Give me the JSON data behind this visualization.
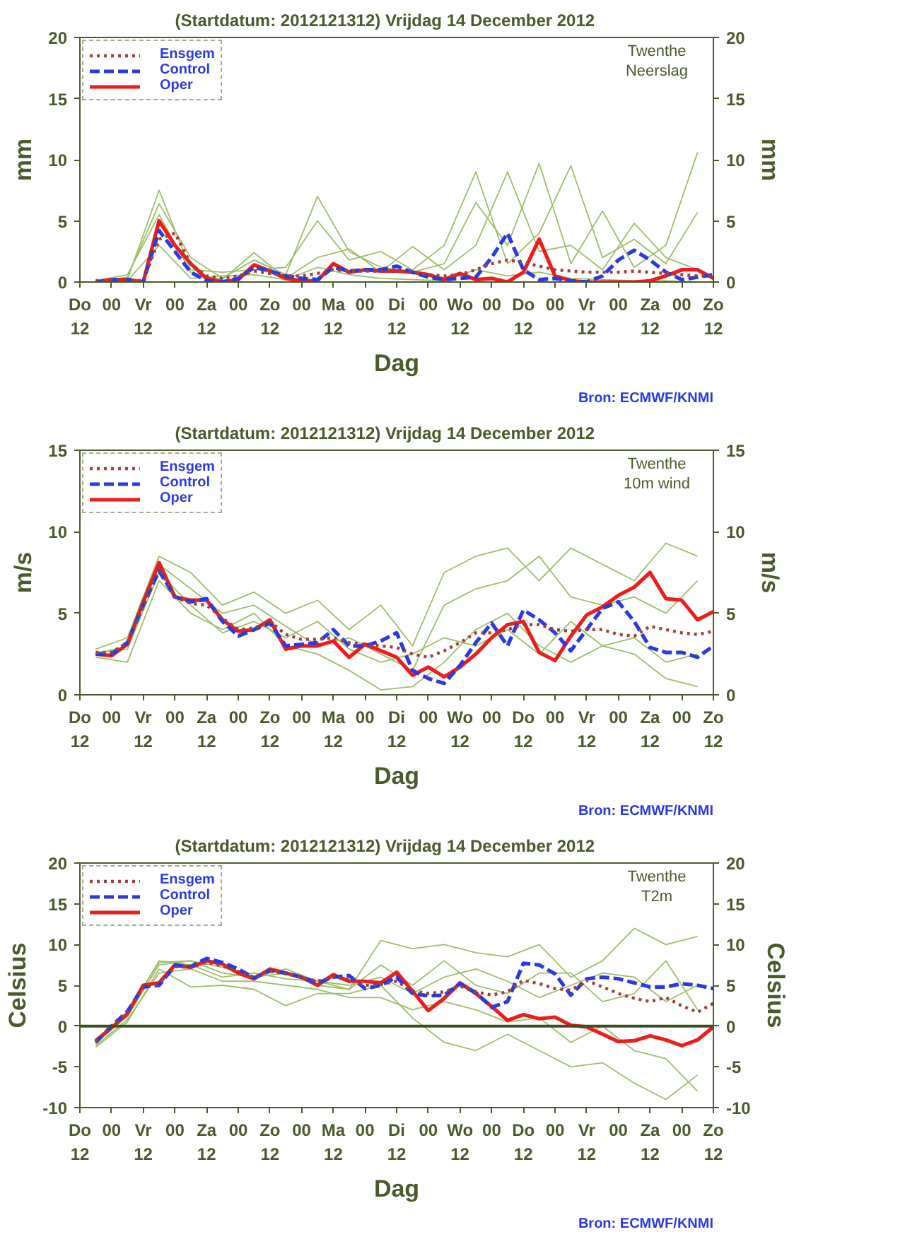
{
  "chart_data": [
    {
      "type": "line",
      "title": "(Startdatum: 2012121312)   Vrijdag   14 December  2012",
      "xlabel": "Dag",
      "ylabel": "mm",
      "y2label": "mm",
      "annotations": [
        "Twenthe",
        "Neerslag",
        "Bron: ECMWF/KNMI"
      ],
      "legend": "top left",
      "xlim": [
        "2012-12-13T12:00",
        "2012-12-23T12:00"
      ],
      "ylim": [
        0,
        20
      ],
      "y2lim": [
        0,
        20
      ],
      "yticks": [
        0,
        5,
        10,
        15,
        20
      ],
      "y2ticks": [
        0,
        5,
        10,
        15,
        20
      ],
      "xticks": [
        {
          "value": "2012-12-13T12:00",
          "label": "Do\n12"
        },
        {
          "value": "2012-12-14T00:00",
          "label": "00"
        },
        {
          "value": "2012-12-14T12:00",
          "label": "Vr\n12"
        },
        {
          "value": "2012-12-15T00:00",
          "label": "00"
        },
        {
          "value": "2012-12-15T12:00",
          "label": "Za\n12"
        },
        {
          "value": "2012-12-16T00:00",
          "label": "00"
        },
        {
          "value": "2012-12-16T12:00",
          "label": "Zo\n12"
        },
        {
          "value": "2012-12-17T00:00",
          "label": "00"
        },
        {
          "value": "2012-12-17T12:00",
          "label": "Ma\n12"
        },
        {
          "value": "2012-12-18T00:00",
          "label": "00"
        },
        {
          "value": "2012-12-18T12:00",
          "label": "Di\n12"
        },
        {
          "value": "2012-12-19T00:00",
          "label": "00"
        },
        {
          "value": "2012-12-19T12:00",
          "label": "Wo\n12"
        },
        {
          "value": "2012-12-20T00:00",
          "label": "00"
        },
        {
          "value": "2012-12-20T12:00",
          "label": "Do\n12"
        },
        {
          "value": "2012-12-21T00:00",
          "label": "00"
        },
        {
          "value": "2012-12-21T12:00",
          "label": "Vr\n12"
        },
        {
          "value": "2012-12-22T00:00",
          "label": "00"
        },
        {
          "value": "2012-12-22T12:00",
          "label": "Za\n12"
        },
        {
          "value": "2012-12-23T00:00",
          "label": "00"
        },
        {
          "value": "2012-12-23T12:00",
          "label": "Zo\n12"
        }
      ],
      "x": [
        "2012-12-13T18:00",
        "2012-12-14T00:00",
        "2012-12-14T06:00",
        "2012-12-14T12:00",
        "2012-12-14T18:00",
        "2012-12-15T00:00",
        "2012-12-15T06:00",
        "2012-12-15T12:00",
        "2012-12-15T18:00",
        "2012-12-16T00:00",
        "2012-12-16T06:00",
        "2012-12-16T12:00",
        "2012-12-16T18:00",
        "2012-12-17T00:00",
        "2012-12-17T06:00",
        "2012-12-17T12:00",
        "2012-12-17T18:00",
        "2012-12-18T00:00",
        "2012-12-18T06:00",
        "2012-12-18T12:00",
        "2012-12-18T18:00",
        "2012-12-19T00:00",
        "2012-12-19T06:00",
        "2012-12-19T12:00",
        "2012-12-19T18:00",
        "2012-12-20T00:00",
        "2012-12-20T06:00",
        "2012-12-20T12:00",
        "2012-12-20T18:00",
        "2012-12-21T00:00",
        "2012-12-21T06:00",
        "2012-12-21T12:00",
        "2012-12-21T18:00",
        "2012-12-22T00:00",
        "2012-12-22T06:00",
        "2012-12-22T12:00",
        "2012-12-22T18:00",
        "2012-12-23T00:00",
        "2012-12-23T06:00",
        "2012-12-23T12:00"
      ],
      "series": [
        {
          "color": "#9cbf6a",
          "x": [
            "2012-12-13T18:00",
            "2012-12-14T06:00",
            "2012-12-14T18:00",
            "2012-12-15T06:00",
            "2012-12-15T18:00",
            "2012-12-16T06:00",
            "2012-12-16T18:00",
            "2012-12-17T06:00",
            "2012-12-17T18:00",
            "2012-12-18T06:00",
            "2012-12-18T18:00",
            "2012-12-19T06:00",
            "2012-12-19T18:00",
            "2012-12-20T06:00",
            "2012-12-20T18:00",
            "2012-12-21T06:00",
            "2012-12-21T18:00",
            "2012-12-22T06:00",
            "2012-12-22T18:00",
            "2012-12-23T06:00"
          ],
          "values": [
            0,
            0.4,
            6.4,
            2.0,
            0.3,
            1.8,
            0.6,
            7.0,
            2.5,
            1.2,
            0.8,
            1.5,
            6.5,
            3.0,
            9.7,
            1.5,
            5.8,
            1.2,
            3.0,
            10.6
          ]
        },
        {
          "color": "#9cbf6a",
          "x": [
            "2012-12-13T18:00",
            "2012-12-14T06:00",
            "2012-12-14T18:00",
            "2012-12-15T06:00",
            "2012-12-15T18:00",
            "2012-12-16T06:00",
            "2012-12-16T18:00",
            "2012-12-17T06:00",
            "2012-12-17T18:00",
            "2012-12-18T06:00",
            "2012-12-18T18:00",
            "2012-12-19T06:00",
            "2012-12-19T18:00",
            "2012-12-20T06:00",
            "2012-12-20T18:00",
            "2012-12-21T06:00",
            "2012-12-21T18:00",
            "2012-12-22T06:00",
            "2012-12-22T18:00",
            "2012-12-23T06:00"
          ],
          "values": [
            0,
            0.2,
            7.5,
            1.0,
            0.8,
            1.0,
            1.2,
            5.0,
            1.8,
            2.5,
            1.0,
            3.0,
            9.0,
            1.5,
            4.0,
            9.5,
            2.0,
            3.5,
            1.5,
            5.7
          ]
        },
        {
          "color": "#9cbf6a",
          "x": [
            "2012-12-13T18:00",
            "2012-12-14T06:00",
            "2012-12-14T18:00",
            "2012-12-15T06:00",
            "2012-12-15T18:00",
            "2012-12-16T06:00",
            "2012-12-16T18:00",
            "2012-12-17T06:00",
            "2012-12-17T18:00",
            "2012-12-18T06:00",
            "2012-12-18T18:00",
            "2012-12-19T06:00",
            "2012-12-19T18:00",
            "2012-12-20T06:00",
            "2012-12-20T18:00",
            "2012-12-21T06:00",
            "2012-12-21T18:00",
            "2012-12-22T06:00",
            "2012-12-22T18:00",
            "2012-12-23T06:00"
          ],
          "values": [
            0.1,
            0.6,
            5.5,
            0.8,
            0.2,
            2.4,
            0.3,
            2.0,
            2.7,
            0.8,
            2.9,
            1.0,
            3.0,
            9.0,
            2.5,
            3.0,
            1.0,
            4.8,
            2.0,
            1.0
          ]
        },
        {
          "color": "#9cbf6a",
          "x": [
            "2012-12-13T18:00",
            "2012-12-14T06:00",
            "2012-12-14T18:00",
            "2012-12-15T06:00",
            "2012-12-15T18:00",
            "2012-12-16T06:00",
            "2012-12-16T18:00",
            "2012-12-17T06:00",
            "2012-12-17T18:00",
            "2012-12-18T06:00",
            "2012-12-18T18:00",
            "2012-12-19T06:00",
            "2012-12-19T18:00",
            "2012-12-20T06:00",
            "2012-12-20T18:00",
            "2012-12-21T06:00",
            "2012-12-21T18:00",
            "2012-12-22T06:00",
            "2012-12-22T18:00",
            "2012-12-23T06:00"
          ],
          "values": [
            0,
            0.1,
            3.0,
            0.3,
            0.5,
            0.6,
            0.2,
            1.2,
            0.6,
            0.3,
            0.2,
            0.1,
            1.0,
            0.5,
            0.8,
            0.3,
            0.2,
            0.1,
            0.1,
            0
          ]
        },
        {
          "name": "Ensgem",
          "color": "#a0403a",
          "line_style": "dotted",
          "values": [
            0.1,
            0.2,
            0.2,
            0.1,
            3.5,
            4.0,
            1.5,
            0.5,
            0.3,
            0.5,
            0.9,
            0.7,
            0.5,
            0.5,
            0.7,
            1.0,
            0.9,
            0.9,
            0.9,
            0.9,
            0.8,
            0.6,
            0.5,
            0.6,
            1.0,
            1.5,
            1.8,
            1.6,
            1.3,
            1.0,
            0.9,
            0.8,
            0.8,
            0.8,
            0.9,
            0.8,
            0.7,
            0.6,
            0.5,
            0.5
          ]
        },
        {
          "name": "Control",
          "color": "#2a3ae0",
          "line_style": "dashed",
          "values": [
            0,
            0.2,
            0.2,
            0,
            4.2,
            2.5,
            0.8,
            0.1,
            0,
            0.3,
            1.2,
            0.9,
            0.5,
            0.3,
            0.2,
            1.2,
            0.9,
            1.0,
            1.0,
            1.3,
            0.8,
            0.4,
            0.2,
            0.3,
            0.4,
            2.0,
            4.0,
            1.0,
            0.2,
            0.3,
            0.1,
            0,
            0.5,
            1.8,
            2.6,
            1.8,
            0.8,
            0.2,
            0.4,
            0.6
          ]
        },
        {
          "name": "Oper",
          "color": "#ee1c1c",
          "line_style": "solid",
          "values": [
            0,
            0.2,
            0.2,
            0,
            5.0,
            3.0,
            1.5,
            0.3,
            0,
            0.2,
            1.4,
            0.9,
            0.3,
            0.1,
            0.1,
            1.5,
            0.8,
            1.0,
            0.9,
            0.9,
            0.8,
            0.6,
            0.2,
            0.7,
            0.2,
            0.3,
            0,
            0.8,
            3.5,
            0.5,
            0.1,
            0,
            0,
            0,
            0,
            0.1,
            0.5,
            1.0,
            1.0,
            0.3
          ]
        }
      ]
    },
    {
      "type": "line",
      "title": "(Startdatum: 2012121312)   Vrijdag   14 December  2012",
      "xlabel": "Dag",
      "ylabel": "m/s",
      "y2label": "m/s",
      "annotations": [
        "Twenthe",
        "10m wind",
        "Bron: ECMWF/KNMI"
      ],
      "legend": "top left",
      "xlim": [
        "2012-12-13T12:00",
        "2012-12-23T12:00"
      ],
      "ylim": [
        0,
        15
      ],
      "y2lim": [
        0,
        15
      ],
      "yticks": [
        0,
        5,
        10,
        15
      ],
      "y2ticks": [
        0,
        5,
        10,
        15
      ],
      "xticks": [
        {
          "value": "2012-12-13T12:00",
          "label": "Do\n12"
        },
        {
          "value": "2012-12-14T00:00",
          "label": "00"
        },
        {
          "value": "2012-12-14T12:00",
          "label": "Vr\n12"
        },
        {
          "value": "2012-12-15T00:00",
          "label": "00"
        },
        {
          "value": "2012-12-15T12:00",
          "label": "Za\n12"
        },
        {
          "value": "2012-12-16T00:00",
          "label": "00"
        },
        {
          "value": "2012-12-16T12:00",
          "label": "Zo\n12"
        },
        {
          "value": "2012-12-17T00:00",
          "label": "00"
        },
        {
          "value": "2012-12-17T12:00",
          "label": "Ma\n12"
        },
        {
          "value": "2012-12-18T00:00",
          "label": "00"
        },
        {
          "value": "2012-12-18T12:00",
          "label": "Di\n12"
        },
        {
          "value": "2012-12-19T00:00",
          "label": "00"
        },
        {
          "value": "2012-12-19T12:00",
          "label": "Wo\n12"
        },
        {
          "value": "2012-12-20T00:00",
          "label": "00"
        },
        {
          "value": "2012-12-20T12:00",
          "label": "Do\n12"
        },
        {
          "value": "2012-12-21T00:00",
          "label": "00"
        },
        {
          "value": "2012-12-21T12:00",
          "label": "Vr\n12"
        },
        {
          "value": "2012-12-22T00:00",
          "label": "00"
        },
        {
          "value": "2012-12-22T12:00",
          "label": "Za\n12"
        },
        {
          "value": "2012-12-23T00:00",
          "label": "00"
        },
        {
          "value": "2012-12-23T12:00",
          "label": "Zo\n12"
        }
      ],
      "x": [
        "2012-12-13T18:00",
        "2012-12-14T00:00",
        "2012-12-14T06:00",
        "2012-12-14T12:00",
        "2012-12-14T18:00",
        "2012-12-15T00:00",
        "2012-12-15T06:00",
        "2012-12-15T12:00",
        "2012-12-15T18:00",
        "2012-12-16T00:00",
        "2012-12-16T06:00",
        "2012-12-16T12:00",
        "2012-12-16T18:00",
        "2012-12-17T00:00",
        "2012-12-17T06:00",
        "2012-12-17T12:00",
        "2012-12-17T18:00",
        "2012-12-18T00:00",
        "2012-12-18T06:00",
        "2012-12-18T12:00",
        "2012-12-18T18:00",
        "2012-12-19T00:00",
        "2012-12-19T06:00",
        "2012-12-19T12:00",
        "2012-12-19T18:00",
        "2012-12-20T00:00",
        "2012-12-20T06:00",
        "2012-12-20T12:00",
        "2012-12-20T18:00",
        "2012-12-21T00:00",
        "2012-12-21T06:00",
        "2012-12-21T12:00",
        "2012-12-21T18:00",
        "2012-12-22T00:00",
        "2012-12-22T06:00",
        "2012-12-22T12:00",
        "2012-12-22T18:00",
        "2012-12-23T00:00",
        "2012-12-23T06:00",
        "2012-12-23T12:00"
      ],
      "series": [
        {
          "color": "#9cbf6a",
          "x": [
            "2012-12-13T18:00",
            "2012-12-14T06:00",
            "2012-12-14T18:00",
            "2012-12-15T06:00",
            "2012-12-15T18:00",
            "2012-12-16T06:00",
            "2012-12-16T18:00",
            "2012-12-17T06:00",
            "2012-12-17T18:00",
            "2012-12-18T06:00",
            "2012-12-18T18:00",
            "2012-12-19T06:00",
            "2012-12-19T18:00",
            "2012-12-20T06:00",
            "2012-12-20T18:00",
            "2012-12-21T06:00",
            "2012-12-21T18:00",
            "2012-12-22T06:00",
            "2012-12-22T18:00",
            "2012-12-23T06:00"
          ],
          "values": [
            2.8,
            3.5,
            8.5,
            7.5,
            5.5,
            6.3,
            5.0,
            5.8,
            4.0,
            5.5,
            3.0,
            7.5,
            8.5,
            9.0,
            7.0,
            9.0,
            8.0,
            7.0,
            9.3,
            8.5
          ]
        },
        {
          "color": "#9cbf6a",
          "x": [
            "2012-12-13T18:00",
            "2012-12-14T06:00",
            "2012-12-14T18:00",
            "2012-12-15T06:00",
            "2012-12-15T18:00",
            "2012-12-16T06:00",
            "2012-12-16T18:00",
            "2012-12-17T06:00",
            "2012-12-17T18:00",
            "2012-12-18T06:00",
            "2012-12-18T18:00",
            "2012-12-19T06:00",
            "2012-12-19T18:00",
            "2012-12-20T06:00",
            "2012-12-20T18:00",
            "2012-12-21T06:00",
            "2012-12-21T18:00",
            "2012-12-22T06:00",
            "2012-12-22T18:00",
            "2012-12-23T06:00"
          ],
          "values": [
            2.3,
            2.0,
            7.0,
            5.0,
            4.0,
            5.0,
            3.0,
            2.5,
            1.5,
            0.3,
            0.5,
            2.0,
            4.0,
            5.0,
            3.0,
            2.0,
            3.0,
            2.5,
            1.0,
            0.5
          ]
        },
        {
          "color": "#9cbf6a",
          "x": [
            "2012-12-13T18:00",
            "2012-12-14T06:00",
            "2012-12-14T18:00",
            "2012-12-15T06:00",
            "2012-12-15T18:00",
            "2012-12-16T06:00",
            "2012-12-16T18:00",
            "2012-12-17T06:00",
            "2012-12-17T18:00",
            "2012-12-18T06:00",
            "2012-12-18T18:00",
            "2012-12-19T06:00",
            "2012-12-19T18:00",
            "2012-12-20T06:00",
            "2012-12-20T18:00",
            "2012-12-21T06:00",
            "2012-12-21T18:00",
            "2012-12-22T06:00",
            "2012-12-22T18:00",
            "2012-12-23T06:00"
          ],
          "values": [
            2.5,
            3.0,
            8.0,
            6.5,
            5.0,
            5.5,
            4.2,
            3.0,
            3.5,
            2.5,
            1.5,
            5.5,
            6.5,
            7.0,
            8.5,
            6.0,
            5.5,
            6.0,
            5.0,
            7.0
          ]
        },
        {
          "color": "#9cbf6a",
          "x": [
            "2012-12-13T18:00",
            "2012-12-14T06:00",
            "2012-12-14T18:00",
            "2012-12-15T06:00",
            "2012-12-15T18:00",
            "2012-12-16T06:00",
            "2012-12-16T18:00",
            "2012-12-17T06:00",
            "2012-12-17T18:00",
            "2012-12-18T06:00",
            "2012-12-18T18:00",
            "2012-12-19T06:00",
            "2012-12-19T18:00",
            "2012-12-20T06:00",
            "2012-12-20T18:00",
            "2012-12-21T06:00",
            "2012-12-21T18:00",
            "2012-12-22T06:00",
            "2012-12-22T18:00",
            "2012-12-23T06:00"
          ],
          "values": [
            2.6,
            2.8,
            7.5,
            5.5,
            3.8,
            4.5,
            3.5,
            4.5,
            2.8,
            2.0,
            2.5,
            3.5,
            3.0,
            4.0,
            2.5,
            4.5,
            3.0,
            3.5,
            2.0,
            2.5
          ]
        },
        {
          "name": "Ensgem",
          "color": "#a0403a",
          "line_style": "dotted",
          "values": [
            2.6,
            2.6,
            3.2,
            5.5,
            7.8,
            6.0,
            5.6,
            5.5,
            4.7,
            4.0,
            4.1,
            4.5,
            3.7,
            3.4,
            3.4,
            3.5,
            3.2,
            3.1,
            3.0,
            2.9,
            2.5,
            2.3,
            2.7,
            3.2,
            3.8,
            3.8,
            4.0,
            4.3,
            4.3,
            4.0,
            3.9,
            4.0,
            4.0,
            3.7,
            3.6,
            4.2,
            4.0,
            3.8,
            3.7,
            3.9
          ]
        },
        {
          "name": "Control",
          "color": "#2a3ae0",
          "line_style": "dashed",
          "values": [
            2.5,
            2.5,
            3.2,
            5.5,
            7.6,
            6.0,
            5.7,
            5.9,
            4.5,
            3.6,
            4.0,
            4.4,
            3.0,
            3.1,
            3.2,
            4.0,
            3.0,
            3.0,
            3.3,
            3.8,
            1.5,
            1.0,
            0.7,
            1.8,
            3.2,
            4.4,
            3.0,
            5.2,
            4.6,
            3.8,
            2.7,
            4.0,
            5.3,
            5.7,
            4.5,
            2.9,
            2.6,
            2.6,
            2.3,
            3.0
          ]
        },
        {
          "name": "Oper",
          "color": "#ee1c1c",
          "line_style": "solid",
          "values": [
            2.5,
            2.4,
            3.1,
            5.7,
            8.1,
            6.0,
            5.8,
            5.8,
            4.6,
            3.9,
            4.0,
            4.6,
            2.8,
            3.0,
            3.0,
            3.3,
            2.3,
            3.1,
            2.7,
            2.3,
            1.2,
            1.7,
            1.1,
            1.7,
            2.5,
            3.5,
            4.3,
            4.5,
            2.6,
            2.1,
            3.6,
            4.9,
            5.4,
            6.1,
            6.6,
            7.5,
            5.9,
            5.8,
            4.6,
            5.1
          ]
        }
      ]
    },
    {
      "type": "line",
      "title": "(Startdatum: 2012121312)   Vrijdag   14 December  2012",
      "xlabel": "Dag",
      "ylabel": "Celsius",
      "y2label": "Celsius",
      "annotations": [
        "Twenthe",
        "T2m",
        "Bron: ECMWF/KNMI"
      ],
      "legend": "top left",
      "xlim": [
        "2012-12-13T12:00",
        "2012-12-23T12:00"
      ],
      "ylim": [
        -10,
        20
      ],
      "y2lim": [
        -10,
        20
      ],
      "yticks": [
        -10,
        -5,
        0,
        5,
        10,
        15,
        20
      ],
      "y2ticks": [
        -10,
        -5,
        0,
        5,
        10,
        15,
        20
      ],
      "ref_lines": [
        {
          "axis": "y",
          "value": 0,
          "color": "#3d4f1f"
        }
      ],
      "xticks": [
        {
          "value": "2012-12-13T12:00",
          "label": "Do\n12"
        },
        {
          "value": "2012-12-14T00:00",
          "label": "00"
        },
        {
          "value": "2012-12-14T12:00",
          "label": "Vr\n12"
        },
        {
          "value": "2012-12-15T00:00",
          "label": "00"
        },
        {
          "value": "2012-12-15T12:00",
          "label": "Za\n12"
        },
        {
          "value": "2012-12-16T00:00",
          "label": "00"
        },
        {
          "value": "2012-12-16T12:00",
          "label": "Zo\n12"
        },
        {
          "value": "2012-12-17T00:00",
          "label": "00"
        },
        {
          "value": "2012-12-17T12:00",
          "label": "Ma\n12"
        },
        {
          "value": "2012-12-18T00:00",
          "label": "00"
        },
        {
          "value": "2012-12-18T12:00",
          "label": "Di\n12"
        },
        {
          "value": "2012-12-19T00:00",
          "label": "00"
        },
        {
          "value": "2012-12-19T12:00",
          "label": "Wo\n12"
        },
        {
          "value": "2012-12-20T00:00",
          "label": "00"
        },
        {
          "value": "2012-12-20T12:00",
          "label": "Do\n12"
        },
        {
          "value": "2012-12-21T00:00",
          "label": "00"
        },
        {
          "value": "2012-12-21T12:00",
          "label": "Vr\n12"
        },
        {
          "value": "2012-12-22T00:00",
          "label": "00"
        },
        {
          "value": "2012-12-22T12:00",
          "label": "Za\n12"
        },
        {
          "value": "2012-12-23T00:00",
          "label": "00"
        },
        {
          "value": "2012-12-23T12:00",
          "label": "Zo\n12"
        }
      ],
      "x": [
        "2012-12-13T18:00",
        "2012-12-14T00:00",
        "2012-12-14T06:00",
        "2012-12-14T12:00",
        "2012-12-14T18:00",
        "2012-12-15T00:00",
        "2012-12-15T06:00",
        "2012-12-15T12:00",
        "2012-12-15T18:00",
        "2012-12-16T00:00",
        "2012-12-16T06:00",
        "2012-12-16T12:00",
        "2012-12-16T18:00",
        "2012-12-17T00:00",
        "2012-12-17T06:00",
        "2012-12-17T12:00",
        "2012-12-17T18:00",
        "2012-12-18T00:00",
        "2012-12-18T06:00",
        "2012-12-18T12:00",
        "2012-12-18T18:00",
        "2012-12-19T00:00",
        "2012-12-19T06:00",
        "2012-12-19T12:00",
        "2012-12-19T18:00",
        "2012-12-20T00:00",
        "2012-12-20T06:00",
        "2012-12-20T12:00",
        "2012-12-20T18:00",
        "2012-12-21T00:00",
        "2012-12-21T06:00",
        "2012-12-21T12:00",
        "2012-12-21T18:00",
        "2012-12-22T00:00",
        "2012-12-22T06:00",
        "2012-12-22T12:00",
        "2012-12-22T18:00",
        "2012-12-23T00:00",
        "2012-12-23T06:00",
        "2012-12-23T12:00"
      ],
      "series": [
        {
          "color": "#9cbf6a",
          "x": [
            "2012-12-13T18:00",
            "2012-12-14T06:00",
            "2012-12-14T18:00",
            "2012-12-15T06:00",
            "2012-12-15T18:00",
            "2012-12-16T06:00",
            "2012-12-16T18:00",
            "2012-12-17T06:00",
            "2012-12-17T18:00",
            "2012-12-18T06:00",
            "2012-12-18T18:00",
            "2012-12-19T06:00",
            "2012-12-19T18:00",
            "2012-12-20T06:00",
            "2012-12-20T18:00",
            "2012-12-21T06:00",
            "2012-12-21T18:00",
            "2012-12-22T06:00",
            "2012-12-22T18:00",
            "2012-12-23T06:00"
          ],
          "values": [
            -2.2,
            1.8,
            7.8,
            8.0,
            6.5,
            6.0,
            7.0,
            5.5,
            4.5,
            10.5,
            9.5,
            10.0,
            9.0,
            8.5,
            10.0,
            6.0,
            8.0,
            12.0,
            10.0,
            11.0
          ]
        },
        {
          "color": "#9cbf6a",
          "x": [
            "2012-12-13T18:00",
            "2012-12-14T06:00",
            "2012-12-14T18:00",
            "2012-12-15T06:00",
            "2012-12-15T18:00",
            "2012-12-16T06:00",
            "2012-12-16T18:00",
            "2012-12-17T06:00",
            "2012-12-17T18:00",
            "2012-12-18T06:00",
            "2012-12-18T18:00",
            "2012-12-19T06:00",
            "2012-12-19T18:00",
            "2012-12-20T06:00",
            "2012-12-20T18:00",
            "2012-12-21T06:00",
            "2012-12-21T18:00",
            "2012-12-22T06:00",
            "2012-12-22T18:00",
            "2012-12-23T06:00"
          ],
          "values": [
            -2.6,
            0.5,
            7.0,
            4.8,
            5.0,
            4.5,
            2.5,
            4.0,
            4.0,
            5.0,
            1.0,
            -2.0,
            -3.0,
            -1.0,
            -3.0,
            -5.0,
            -4.5,
            -7.0,
            -9.0,
            -6.0
          ]
        },
        {
          "color": "#9cbf6a",
          "x": [
            "2012-12-13T18:00",
            "2012-12-14T06:00",
            "2012-12-14T18:00",
            "2012-12-15T06:00",
            "2012-12-15T18:00",
            "2012-12-16T06:00",
            "2012-12-16T18:00",
            "2012-12-17T06:00",
            "2012-12-17T18:00",
            "2012-12-18T06:00",
            "2012-12-18T18:00",
            "2012-12-19T06:00",
            "2012-12-19T18:00",
            "2012-12-20T06:00",
            "2012-12-20T18:00",
            "2012-12-21T06:00",
            "2012-12-21T18:00",
            "2012-12-22T06:00",
            "2012-12-22T18:00",
            "2012-12-23T06:00"
          ],
          "values": [
            -2.0,
            1.2,
            7.5,
            8.0,
            7.2,
            6.0,
            6.5,
            5.0,
            4.5,
            7.5,
            5.0,
            8.0,
            5.0,
            4.0,
            6.5,
            6.5,
            3.0,
            4.0,
            8.0,
            2.0
          ]
        },
        {
          "color": "#9cbf6a",
          "x": [
            "2012-12-13T18:00",
            "2012-12-14T06:00",
            "2012-12-14T18:00",
            "2012-12-15T06:00",
            "2012-12-15T18:00",
            "2012-12-16T06:00",
            "2012-12-16T18:00",
            "2012-12-17T06:00",
            "2012-12-17T18:00",
            "2012-12-18T06:00",
            "2012-12-18T18:00",
            "2012-12-19T06:00",
            "2012-12-19T18:00",
            "2012-12-20T06:00",
            "2012-12-20T18:00",
            "2012-12-21T06:00",
            "2012-12-21T18:00",
            "2012-12-22T06:00",
            "2012-12-22T18:00",
            "2012-12-23T06:00"
          ],
          "values": [
            -2.4,
            0.8,
            6.5,
            7.0,
            5.5,
            5.5,
            5.0,
            4.5,
            3.5,
            3.5,
            2.0,
            3.0,
            2.0,
            0.5,
            1.0,
            -2.0,
            0.0,
            -3.0,
            -4.0,
            -8.0
          ]
        },
        {
          "color": "#9cbf6a",
          "x": [
            "2012-12-13T18:00",
            "2012-12-14T06:00",
            "2012-12-14T18:00",
            "2012-12-15T06:00",
            "2012-12-15T18:00",
            "2012-12-16T06:00",
            "2012-12-16T18:00",
            "2012-12-17T06:00",
            "2012-12-17T18:00",
            "2012-12-18T06:00",
            "2012-12-18T18:00",
            "2012-12-19T06:00",
            "2012-12-19T18:00",
            "2012-12-20T06:00",
            "2012-12-20T18:00",
            "2012-12-21T06:00",
            "2012-12-21T18:00",
            "2012-12-22T06:00",
            "2012-12-22T18:00",
            "2012-12-23T06:00"
          ],
          "values": [
            -2.1,
            1.5,
            8.0,
            7.5,
            6.0,
            6.5,
            5.8,
            5.5,
            5.0,
            6.0,
            4.0,
            6.0,
            7.0,
            5.5,
            3.5,
            5.0,
            6.5,
            6.0,
            3.0,
            5.0
          ]
        },
        {
          "name": "Ensgem",
          "color": "#a0403a",
          "line_style": "dotted",
          "values": [
            -1.9,
            0,
            1.6,
            4.8,
            5.2,
            7.3,
            7.2,
            7.8,
            7.4,
            6.7,
            6.0,
            6.8,
            6.4,
            6.0,
            5.5,
            6.0,
            5.7,
            5.0,
            5.1,
            5.5,
            4.3,
            4.0,
            4.2,
            4.9,
            4.2,
            3.8,
            4.2,
            5.6,
            5.2,
            4.6,
            4.4,
            5.6,
            4.8,
            4.0,
            3.4,
            3.0,
            3.5,
            2.5,
            1.7,
            2.8
          ]
        },
        {
          "name": "Control",
          "color": "#2a3ae0",
          "line_style": "dashed",
          "values": [
            -2.0,
            0,
            1.8,
            4.8,
            5.0,
            7.4,
            7.3,
            8.3,
            7.8,
            7.0,
            5.9,
            6.8,
            6.5,
            6.0,
            5.3,
            6.0,
            6.2,
            4.6,
            5.0,
            6.0,
            4.0,
            3.7,
            3.8,
            5.2,
            4.1,
            2.3,
            3.0,
            7.7,
            7.5,
            6.4,
            3.8,
            5.8,
            6.0,
            5.8,
            5.3,
            4.8,
            4.8,
            5.2,
            5.0,
            4.6
          ]
        },
        {
          "name": "Oper",
          "color": "#ee1c1c",
          "line_style": "solid",
          "values": [
            -1.8,
            -0.2,
            1.5,
            5.0,
            5.3,
            7.5,
            7.2,
            8.0,
            7.6,
            6.5,
            5.8,
            7.0,
            6.5,
            6.0,
            5.0,
            6.3,
            5.5,
            5.5,
            5.3,
            6.6,
            4.3,
            1.9,
            3.4,
            5.3,
            4.0,
            2.4,
            0.7,
            1.4,
            0.9,
            1.1,
            0.1,
            -0.1,
            -1.0,
            -1.9,
            -1.8,
            -1.2,
            -1.7,
            -2.4,
            -1.7,
            -0.1
          ]
        }
      ]
    }
  ]
}
